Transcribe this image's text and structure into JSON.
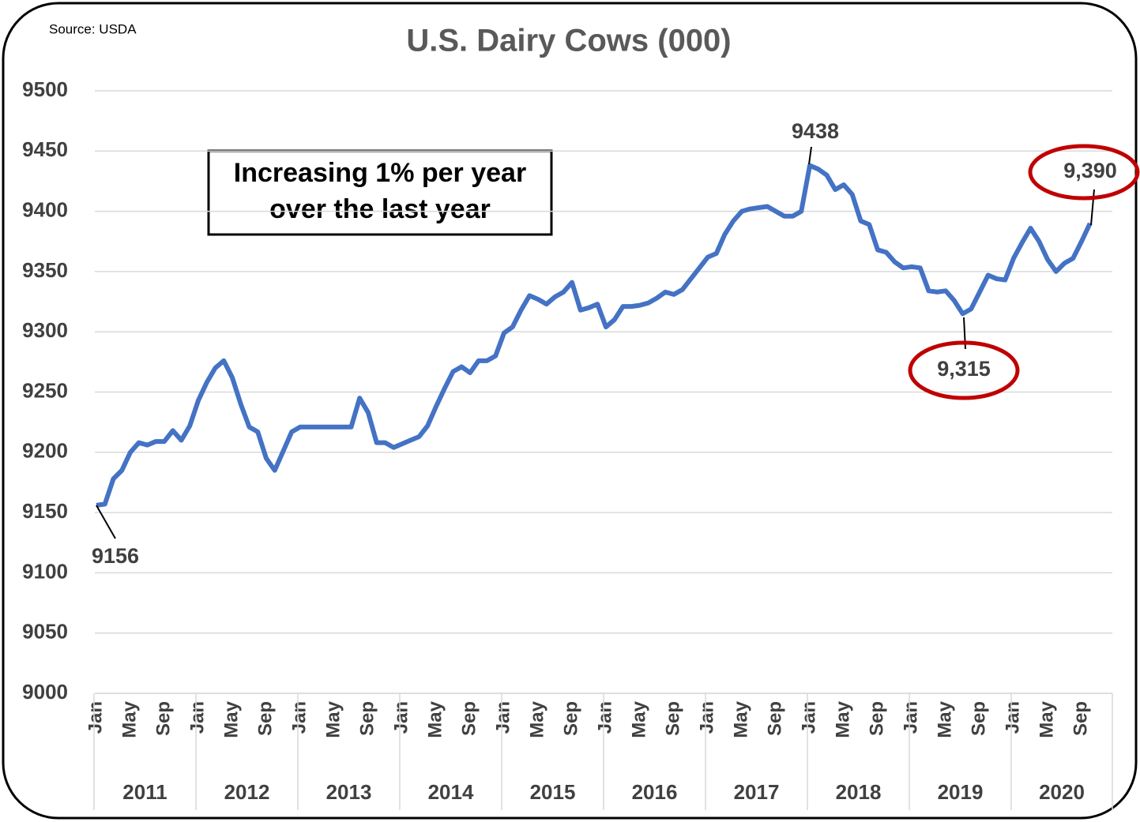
{
  "chart_data": {
    "type": "line",
    "title": "U.S. Dairy Cows (000)",
    "source": "Source: USDA",
    "annotation": "Increasing 1% per year over the last year",
    "categories": [
      "Jan",
      null,
      null,
      null,
      "May",
      null,
      null,
      null,
      "Sep",
      null,
      null,
      null,
      "Jan",
      null,
      null,
      null,
      "May",
      null,
      null,
      null,
      "Sep",
      null,
      null,
      null,
      "Jan",
      null,
      null,
      null,
      "May",
      null,
      null,
      null,
      "Sep",
      null,
      null,
      null,
      "Jan",
      null,
      null,
      null,
      "May",
      null,
      null,
      null,
      "Sep",
      null,
      null,
      null,
      "Jan",
      null,
      null,
      null,
      "May",
      null,
      null,
      null,
      "Sep",
      null,
      null,
      null,
      "Jan",
      null,
      null,
      null,
      "May",
      null,
      null,
      null,
      "Sep",
      null,
      null,
      null,
      "Jan",
      null,
      null,
      null,
      "May",
      null,
      null,
      null,
      "Sep",
      null,
      null,
      null,
      "Jan",
      null,
      null,
      null,
      "May",
      null,
      null,
      null,
      "Sep",
      null,
      null,
      null,
      "Jan",
      null,
      null,
      null,
      "May",
      null,
      null,
      null,
      "Sep",
      null,
      null,
      null,
      "Jan",
      null,
      null,
      null,
      "May",
      null,
      null,
      null,
      "Sep",
      null
    ],
    "year_groups": [
      "2011",
      "2012",
      "2013",
      "2014",
      "2015",
      "2016",
      "2017",
      "2018",
      "2019",
      "2020"
    ],
    "values": [
      9156,
      9157,
      9178,
      9185,
      9200,
      9208,
      9206,
      9209,
      9209,
      9218,
      9210,
      9222,
      9243,
      9258,
      9270,
      9276,
      9262,
      9240,
      9221,
      9217,
      9195,
      9185,
      9201,
      9217,
      9221,
      9221,
      9221,
      9221,
      9221,
      9221,
      9221,
      9245,
      9233,
      9208,
      9208,
      9204,
      9207,
      9210,
      9213,
      9222,
      9238,
      9253,
      9267,
      9271,
      9266,
      9276,
      9276,
      9280,
      9299,
      9304,
      9318,
      9330,
      9327,
      9323,
      9329,
      9333,
      9341,
      9318,
      9320,
      9323,
      9304,
      9310,
      9321,
      9321,
      9322,
      9324,
      9328,
      9333,
      9331,
      9335,
      9344,
      9353,
      9362,
      9365,
      9381,
      9392,
      9400,
      9402,
      9403,
      9404,
      9400,
      9396,
      9396,
      9400,
      9438,
      9435,
      9430,
      9418,
      9422,
      9414,
      9392,
      9389,
      9368,
      9366,
      9358,
      9353,
      9354,
      9353,
      9334,
      9333,
      9334,
      9326,
      9315,
      9319,
      9333,
      9347,
      9344,
      9343,
      9361,
      9374,
      9386,
      9375,
      9360,
      9350,
      9357,
      9361,
      9375,
      9390
    ],
    "value_labels": [
      "9156",
      null,
      null,
      null,
      null,
      null,
      null,
      null,
      null,
      null,
      null,
      null,
      null,
      null,
      null,
      null,
      null,
      null,
      null,
      null,
      null,
      null,
      null,
      null,
      null,
      null,
      null,
      null,
      null,
      null,
      null,
      null,
      null,
      null,
      null,
      null,
      null,
      null,
      null,
      null,
      null,
      null,
      null,
      null,
      null,
      null,
      null,
      null,
      null,
      null,
      null,
      null,
      null,
      null,
      null,
      null,
      null,
      null,
      null,
      null,
      null,
      null,
      null,
      null,
      null,
      null,
      null,
      null,
      null,
      null,
      null,
      null,
      null,
      null,
      null,
      null,
      null,
      null,
      null,
      null,
      null,
      null,
      null,
      null,
      "9438",
      null,
      null,
      null,
      null,
      null,
      null,
      null,
      null,
      null,
      null,
      null,
      null,
      null,
      null,
      null,
      null,
      null,
      "9,315",
      null,
      null,
      null,
      null,
      null,
      null,
      null,
      null,
      null,
      null,
      null,
      null,
      null,
      null,
      "9,390"
    ],
    "color": "#4472c4",
    "ylim": [
      9000,
      9500
    ],
    "yticks": [
      9000,
      9050,
      9100,
      9150,
      9200,
      9250,
      9300,
      9350,
      9400,
      9450,
      9500
    ],
    "grid": true
  }
}
